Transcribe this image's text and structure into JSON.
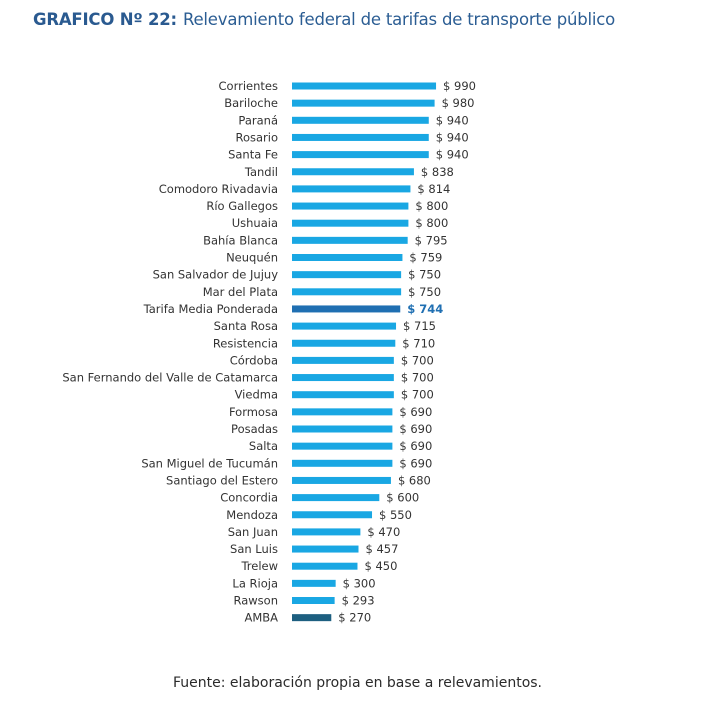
{
  "header": {
    "number": "GRAFICO Nº 22:",
    "title": "Relevamiento federal de tarifas de transporte público"
  },
  "footer": {
    "source": "Fuente: elaboración propia en base a relevamientos."
  },
  "colors": {
    "default": "#19a7e3",
    "average": "#1f6fb2",
    "amba": "#1d5f80"
  },
  "chart_data": {
    "type": "bar",
    "orientation": "horizontal",
    "title": "Relevamiento federal de tarifas de transporte público",
    "xlabel": "",
    "ylabel": "",
    "value_prefix": "$ ",
    "grid": false,
    "legend": "none",
    "xlim": [
      0,
      1000
    ],
    "categories": [
      "Corrientes",
      "Bariloche",
      "Paraná",
      "Rosario",
      "Santa Fe",
      "Tandil",
      "Comodoro Rivadavia",
      "Río Gallegos",
      "Ushuaia",
      "Bahía Blanca",
      "Neuquén",
      "San Salvador de Jujuy",
      "Mar del Plata",
      "Tarifa Media Ponderada",
      "Santa Rosa",
      "Resistencia",
      "Córdoba",
      "San Fernando del Valle de Catamarca",
      "Viedma",
      "Formosa",
      "Posadas",
      "Salta",
      "San Miguel de Tucumán",
      "Santiago del Estero",
      "Concordia",
      "Mendoza",
      "San Juan",
      "San Luis",
      "Trelew",
      "La Rioja",
      "Rawson",
      "AMBA"
    ],
    "values": [
      990,
      980,
      940,
      940,
      940,
      838,
      814,
      800,
      800,
      795,
      759,
      750,
      750,
      744,
      715,
      710,
      700,
      700,
      700,
      690,
      690,
      690,
      690,
      680,
      600,
      550,
      470,
      457,
      450,
      300,
      293,
      270
    ],
    "highlights": {
      "Tarifa Media Ponderada": "average",
      "AMBA": "amba"
    }
  }
}
